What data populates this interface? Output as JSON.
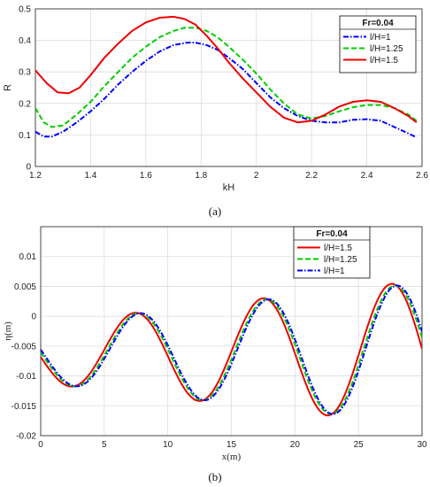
{
  "chart_data": [
    {
      "type": "line",
      "caption": "(a)",
      "xlabel": "kH",
      "ylabel": "R",
      "xlim": [
        1.2,
        2.6
      ],
      "ylim": [
        0,
        0.5
      ],
      "xticks": [
        "1.2",
        "1.4",
        "1.6",
        "1.8",
        "2",
        "2.2",
        "2.4",
        "2.6"
      ],
      "yticks": [
        "0",
        "0.1",
        "0.2",
        "0.3",
        "0.4",
        "0.5"
      ],
      "grid": true,
      "legend_title": "Fr=0.04",
      "legend_position": "top-right",
      "series": [
        {
          "name": "l/H=1",
          "color": "#0000ff",
          "style": "dashdot",
          "x": [
            1.2,
            1.23,
            1.26,
            1.3,
            1.35,
            1.4,
            1.45,
            1.5,
            1.55,
            1.6,
            1.65,
            1.7,
            1.75,
            1.78,
            1.82,
            1.86,
            1.9,
            1.95,
            2.0,
            2.05,
            2.1,
            2.15,
            2.2,
            2.25,
            2.3,
            2.35,
            2.4,
            2.45,
            2.5,
            2.55,
            2.58
          ],
          "y": [
            0.11,
            0.095,
            0.095,
            0.11,
            0.14,
            0.175,
            0.215,
            0.26,
            0.3,
            0.335,
            0.365,
            0.385,
            0.393,
            0.393,
            0.385,
            0.37,
            0.345,
            0.31,
            0.265,
            0.22,
            0.185,
            0.16,
            0.145,
            0.14,
            0.14,
            0.148,
            0.15,
            0.145,
            0.125,
            0.105,
            0.092
          ]
        },
        {
          "name": "l/H=1.25",
          "color": "#00cc00",
          "style": "dashed",
          "x": [
            1.2,
            1.23,
            1.26,
            1.3,
            1.35,
            1.4,
            1.45,
            1.5,
            1.55,
            1.6,
            1.65,
            1.7,
            1.74,
            1.78,
            1.82,
            1.86,
            1.9,
            1.95,
            2.0,
            2.05,
            2.1,
            2.15,
            2.2,
            2.25,
            2.3,
            2.35,
            2.4,
            2.45,
            2.5,
            2.55,
            2.58
          ],
          "y": [
            0.185,
            0.14,
            0.125,
            0.13,
            0.165,
            0.205,
            0.255,
            0.3,
            0.345,
            0.38,
            0.41,
            0.43,
            0.44,
            0.44,
            0.43,
            0.41,
            0.38,
            0.34,
            0.295,
            0.245,
            0.2,
            0.165,
            0.152,
            0.16,
            0.175,
            0.188,
            0.195,
            0.195,
            0.185,
            0.165,
            0.145
          ]
        },
        {
          "name": "l/H=1.5",
          "color": "#ee0000",
          "style": "solid",
          "x": [
            1.2,
            1.24,
            1.28,
            1.32,
            1.36,
            1.4,
            1.45,
            1.5,
            1.55,
            1.6,
            1.65,
            1.7,
            1.74,
            1.78,
            1.82,
            1.86,
            1.9,
            1.95,
            2.0,
            2.05,
            2.1,
            2.15,
            2.2,
            2.25,
            2.3,
            2.35,
            2.4,
            2.45,
            2.5,
            2.55,
            2.58
          ],
          "y": [
            0.305,
            0.265,
            0.235,
            0.232,
            0.25,
            0.29,
            0.345,
            0.39,
            0.43,
            0.457,
            0.472,
            0.475,
            0.468,
            0.45,
            0.415,
            0.375,
            0.33,
            0.28,
            0.235,
            0.19,
            0.155,
            0.14,
            0.145,
            0.165,
            0.19,
            0.205,
            0.21,
            0.205,
            0.185,
            0.16,
            0.14
          ]
        }
      ]
    },
    {
      "type": "line",
      "caption": "(b)",
      "xlabel": "x(m)",
      "ylabel": "η(m)",
      "xlim": [
        0,
        30
      ],
      "ylim": [
        -0.02,
        0.015
      ],
      "xticks": [
        "0",
        "5",
        "10",
        "15",
        "20",
        "25",
        "30"
      ],
      "yticks": [
        "-0.02",
        "-0.015",
        "-0.01",
        "-0.005",
        "0",
        "0.005",
        "0.01"
      ],
      "grid": true,
      "legend_title": "Fr=0.04",
      "legend_position": "top-right",
      "series": [
        {
          "name": "l/H=1.5",
          "color": "#ee0000",
          "style": "solid",
          "phase_shift": 0.0,
          "growth": 0.0024
        },
        {
          "name": "l/H=1.25",
          "color": "#00cc00",
          "style": "dashed",
          "phase_shift": 0.25,
          "growth": 0.0023
        },
        {
          "name": "l/H=1",
          "color": "#0000ff",
          "style": "dashdot",
          "phase_shift": 0.4,
          "growth": 0.0023
        }
      ]
    }
  ]
}
